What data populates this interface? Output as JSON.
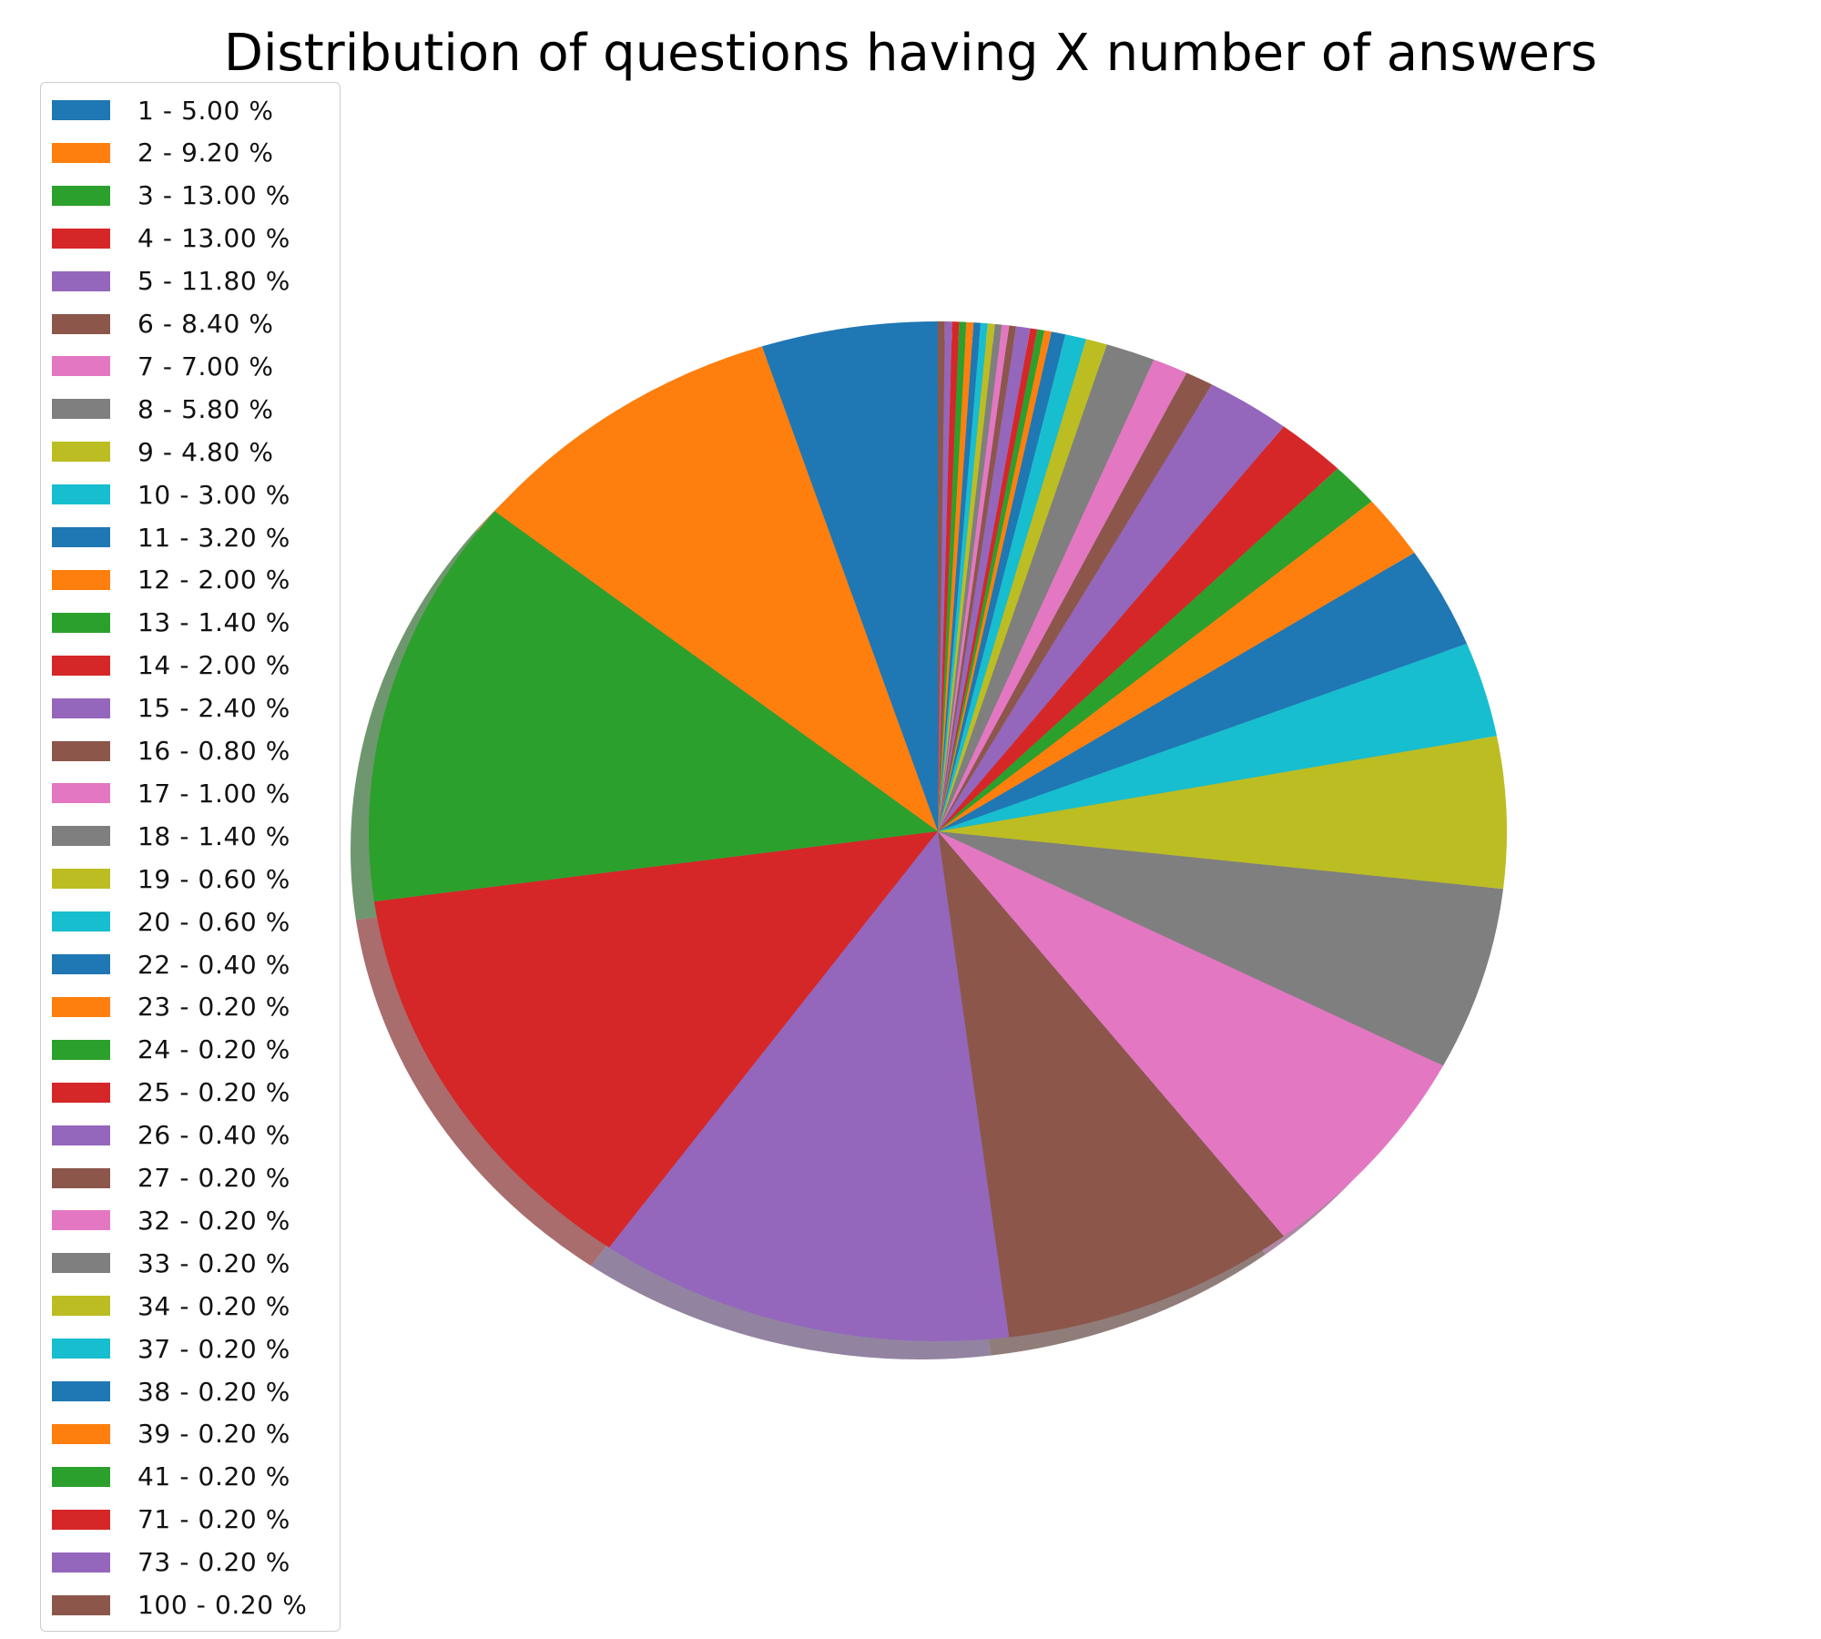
{
  "chart_data": {
    "type": "pie",
    "title": "Distribution of questions having X number of answers",
    "shadow": true,
    "start_angle_deg": 90,
    "direction": "counterclockwise",
    "legend_position": "upper left",
    "slices": [
      {
        "label": "1 - 5.00 %",
        "value": 5.0,
        "color": "#1f77b4"
      },
      {
        "label": "2 - 9.20 %",
        "value": 9.2,
        "color": "#ff7f0e"
      },
      {
        "label": "3 - 13.00 %",
        "value": 13.0,
        "color": "#2ca02c"
      },
      {
        "label": "4 - 13.00 %",
        "value": 13.0,
        "color": "#d62728"
      },
      {
        "label": "5 - 11.80 %",
        "value": 11.8,
        "color": "#9467bd"
      },
      {
        "label": "6 - 8.40 %",
        "value": 8.4,
        "color": "#8c564b"
      },
      {
        "label": "7 - 7.00 %",
        "value": 7.0,
        "color": "#e377c2"
      },
      {
        "label": "8 - 5.80 %",
        "value": 5.8,
        "color": "#7f7f7f"
      },
      {
        "label": "9 - 4.80 %",
        "value": 4.8,
        "color": "#bcbd22"
      },
      {
        "label": "10 - 3.00 %",
        "value": 3.0,
        "color": "#17becf"
      },
      {
        "label": "11 - 3.20 %",
        "value": 3.2,
        "color": "#1f77b4"
      },
      {
        "label": "12 - 2.00 %",
        "value": 2.0,
        "color": "#ff7f0e"
      },
      {
        "label": "13 - 1.40 %",
        "value": 1.4,
        "color": "#2ca02c"
      },
      {
        "label": "14 - 2.00 %",
        "value": 2.0,
        "color": "#d62728"
      },
      {
        "label": "15 - 2.40 %",
        "value": 2.4,
        "color": "#9467bd"
      },
      {
        "label": "16 - 0.80 %",
        "value": 0.8,
        "color": "#8c564b"
      },
      {
        "label": "17 - 1.00 %",
        "value": 1.0,
        "color": "#e377c2"
      },
      {
        "label": "18 - 1.40 %",
        "value": 1.4,
        "color": "#7f7f7f"
      },
      {
        "label": "19 - 0.60 %",
        "value": 0.6,
        "color": "#bcbd22"
      },
      {
        "label": "20 - 0.60 %",
        "value": 0.6,
        "color": "#17becf"
      },
      {
        "label": "22 - 0.40 %",
        "value": 0.4,
        "color": "#1f77b4"
      },
      {
        "label": "23 - 0.20 %",
        "value": 0.2,
        "color": "#ff7f0e"
      },
      {
        "label": "24 - 0.20 %",
        "value": 0.2,
        "color": "#2ca02c"
      },
      {
        "label": "25 - 0.20 %",
        "value": 0.2,
        "color": "#d62728"
      },
      {
        "label": "26 - 0.40 %",
        "value": 0.4,
        "color": "#9467bd"
      },
      {
        "label": "27 - 0.20 %",
        "value": 0.2,
        "color": "#8c564b"
      },
      {
        "label": "32 - 0.20 %",
        "value": 0.2,
        "color": "#e377c2"
      },
      {
        "label": "33 - 0.20 %",
        "value": 0.2,
        "color": "#7f7f7f"
      },
      {
        "label": "34 - 0.20 %",
        "value": 0.2,
        "color": "#bcbd22"
      },
      {
        "label": "37 - 0.20 %",
        "value": 0.2,
        "color": "#17becf"
      },
      {
        "label": "38 - 0.20 %",
        "value": 0.2,
        "color": "#1f77b4"
      },
      {
        "label": "39 - 0.20 %",
        "value": 0.2,
        "color": "#ff7f0e"
      },
      {
        "label": "41 - 0.20 %",
        "value": 0.2,
        "color": "#2ca02c"
      },
      {
        "label": "71 - 0.20 %",
        "value": 0.2,
        "color": "#d62728"
      },
      {
        "label": "73 - 0.20 %",
        "value": 0.2,
        "color": "#9467bd"
      },
      {
        "label": "100 - 0.20 %",
        "value": 0.2,
        "color": "#8c564b"
      }
    ]
  }
}
